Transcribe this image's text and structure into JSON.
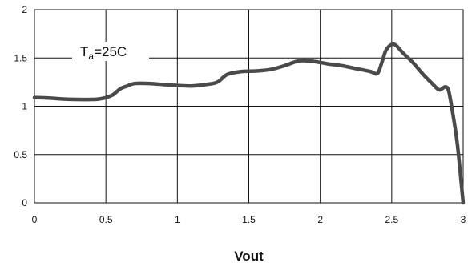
{
  "chart_data": {
    "type": "line",
    "title": "",
    "xlabel": "Vout",
    "ylabel": "",
    "xlim": [
      0,
      3
    ],
    "ylim": [
      0,
      2
    ],
    "xticks": [
      0,
      0.5,
      1,
      1.5,
      2,
      2.5,
      3
    ],
    "yticks": [
      0,
      0.5,
      1,
      1.5,
      2
    ],
    "xtick_labels": [
      "0",
      "0.5",
      "1",
      "1.5",
      "2",
      "2.5",
      "3"
    ],
    "ytick_labels": [
      "0",
      "0.5",
      "1",
      "1.5",
      "2"
    ],
    "grid": true,
    "line_color": "#4a4a4a",
    "annotation": {
      "main": "T",
      "sub": "a",
      "rest": "=25C"
    },
    "series": [
      {
        "points": [
          [
            0,
            1.09
          ],
          [
            0.1,
            1.085
          ],
          [
            0.2,
            1.075
          ],
          [
            0.3,
            1.07
          ],
          [
            0.4,
            1.07
          ],
          [
            0.45,
            1.075
          ],
          [
            0.5,
            1.09
          ],
          [
            0.55,
            1.12
          ],
          [
            0.6,
            1.18
          ],
          [
            0.65,
            1.21
          ],
          [
            0.7,
            1.235
          ],
          [
            0.8,
            1.235
          ],
          [
            0.9,
            1.225
          ],
          [
            1.0,
            1.215
          ],
          [
            1.1,
            1.21
          ],
          [
            1.2,
            1.225
          ],
          [
            1.28,
            1.25
          ],
          [
            1.35,
            1.33
          ],
          [
            1.45,
            1.36
          ],
          [
            1.55,
            1.365
          ],
          [
            1.65,
            1.38
          ],
          [
            1.75,
            1.42
          ],
          [
            1.85,
            1.47
          ],
          [
            1.95,
            1.465
          ],
          [
            2.05,
            1.44
          ],
          [
            2.15,
            1.42
          ],
          [
            2.25,
            1.39
          ],
          [
            2.35,
            1.36
          ],
          [
            2.4,
            1.34
          ],
          [
            2.43,
            1.45
          ],
          [
            2.46,
            1.58
          ],
          [
            2.5,
            1.64
          ],
          [
            2.53,
            1.63
          ],
          [
            2.58,
            1.55
          ],
          [
            2.65,
            1.45
          ],
          [
            2.72,
            1.33
          ],
          [
            2.78,
            1.24
          ],
          [
            2.82,
            1.18
          ],
          [
            2.84,
            1.17
          ],
          [
            2.86,
            1.19
          ],
          [
            2.88,
            1.2
          ],
          [
            2.9,
            1.15
          ],
          [
            2.93,
            0.9
          ],
          [
            2.96,
            0.6
          ],
          [
            3.0,
            0.0
          ]
        ]
      }
    ]
  }
}
